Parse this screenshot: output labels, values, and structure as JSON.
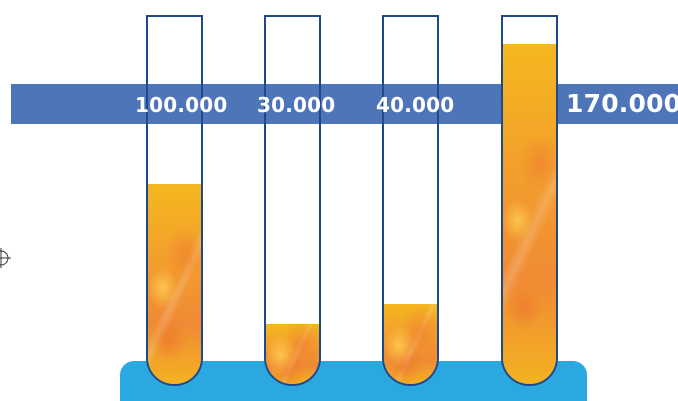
{
  "labels": {
    "tube1": "100.000",
    "tube2": "30.000",
    "tube3": "40.000",
    "total": "170.000"
  },
  "values": [
    100000,
    30000,
    40000,
    170000
  ],
  "colors": {
    "band": "#4f75b9",
    "base": "#2ca8e0",
    "tube_outline": "#1f4a8a",
    "liquid_light": "#f4b81f",
    "liquid_dark": "#f08a35"
  },
  "icons": {
    "registration_mark": "crosshair-circle-icon"
  }
}
